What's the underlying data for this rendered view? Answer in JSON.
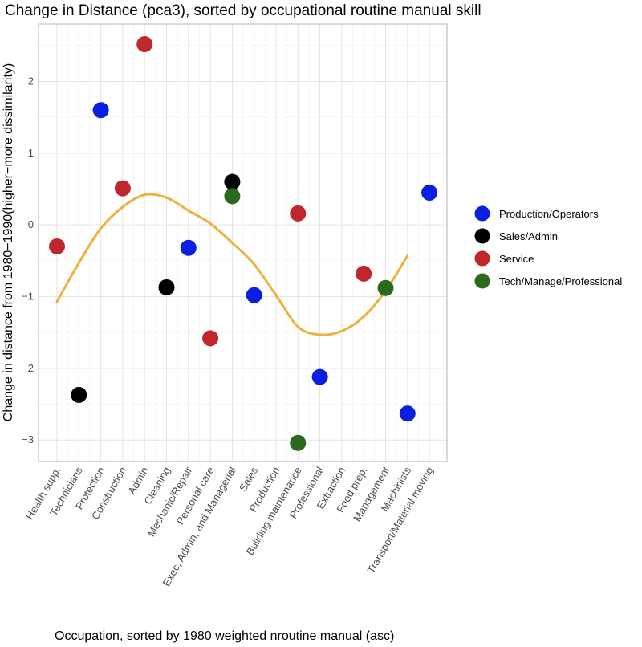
{
  "chart_data": {
    "type": "scatter",
    "title": "Change in Distance (pca3), sorted by occupational routine manual skill",
    "xlabel": "Occupation, sorted by 1980 weighted nroutine manual (asc)",
    "ylabel": "Change in distance from 1980−1990(higher−more dissimilarity)",
    "ylim": [
      -3.3,
      2.8
    ],
    "yticks": [
      -3,
      -2,
      -1,
      0,
      1,
      2
    ],
    "grid": true,
    "legend_position": "right",
    "categories": [
      "Health supp.",
      "Technicians",
      "Protection",
      "Construction",
      "Admin",
      "Cleaning",
      "Mechanic/Repair",
      "Personal care",
      "Exec, Admin, and Managerial",
      "Sales",
      "Production",
      "Building maintenance",
      "Professional",
      "Extraction",
      "Food prep.",
      "Management",
      "Machinists",
      "Transport/Material moving"
    ],
    "series": [
      {
        "name": "Production/Operators",
        "color": "#0a1fe0",
        "points": [
          {
            "x": "Protection",
            "y": 1.6
          },
          {
            "x": "Mechanic/Repair",
            "y": -0.32
          },
          {
            "x": "Sales",
            "y": -0.98
          },
          {
            "x": "Professional",
            "y": -2.12
          },
          {
            "x": "Machinists",
            "y": -2.63
          },
          {
            "x": "Transport/Material moving",
            "y": 0.45
          }
        ]
      },
      {
        "name": "Sales/Admin",
        "color": "#000000",
        "points": [
          {
            "x": "Technicians",
            "y": -2.37
          },
          {
            "x": "Cleaning",
            "y": -0.87
          },
          {
            "x": "Exec, Admin, and Managerial",
            "y": 0.6
          }
        ]
      },
      {
        "name": "Service",
        "color": "#c0272d",
        "points": [
          {
            "x": "Health supp.",
            "y": -0.3
          },
          {
            "x": "Construction",
            "y": 0.51
          },
          {
            "x": "Admin",
            "y": 2.52
          },
          {
            "x": "Personal care",
            "y": -1.58
          },
          {
            "x": "Building maintenance",
            "y": 0.16
          },
          {
            "x": "Food prep.",
            "y": -0.68
          }
        ]
      },
      {
        "name": "Tech/Manage/Professional",
        "color": "#2b6a1c",
        "points": [
          {
            "x": "Exec, Admin, and Managerial",
            "y": 0.4
          },
          {
            "x": "Building maintenance",
            "y": -3.04
          },
          {
            "x": "Management",
            "y": -0.88
          }
        ]
      }
    ],
    "smooth": {
      "color": "#f0b040",
      "x": [
        0,
        1,
        2,
        3,
        4,
        5,
        6,
        7,
        8,
        9,
        10,
        11,
        12,
        13,
        14,
        15,
        16
      ],
      "y": [
        -1.07,
        -0.53,
        -0.05,
        0.25,
        0.42,
        0.38,
        0.2,
        0.02,
        -0.25,
        -0.55,
        -0.98,
        -1.42,
        -1.53,
        -1.48,
        -1.28,
        -0.92,
        -0.43
      ]
    }
  }
}
